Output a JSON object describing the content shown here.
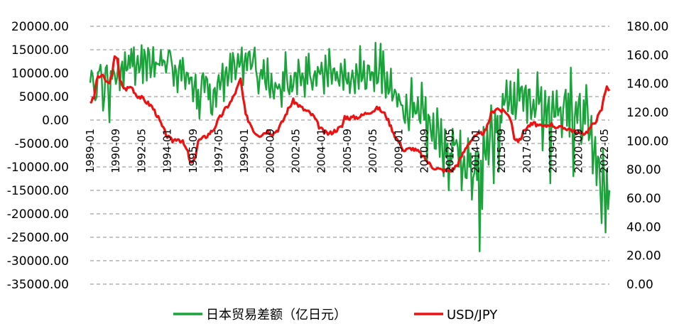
{
  "chart_data": {
    "type": "line",
    "dual_axis": true,
    "x_tick_labels": [
      "1989-01",
      "1990-09",
      "1992-05",
      "1994-01",
      "1995-09",
      "1997-05",
      "1999-01",
      "2000-09",
      "2002-05",
      "2004-01",
      "2005-09",
      "2007-05",
      "2009-01",
      "2010-09",
      "2012-05",
      "2014-01",
      "2015-09",
      "2017-05",
      "2019-01",
      "2020-09",
      "2022-05"
    ],
    "x_tick_months": [
      0,
      20,
      40,
      60,
      80,
      100,
      120,
      140,
      160,
      180,
      200,
      220,
      240,
      260,
      280,
      300,
      320,
      340,
      360,
      380,
      400
    ],
    "x_range_months": [
      0,
      404
    ],
    "y_left": {
      "ticks": [
        "20000.00",
        "15000.00",
        "10000.00",
        "5000.00",
        "0.00",
        "-5000.00",
        "-10000.00",
        "-15000.00",
        "-20000.00",
        "-25000.00",
        "-30000.00",
        "-35000.00"
      ],
      "min": -35000,
      "max": 20000
    },
    "y_right": {
      "ticks": [
        "180.00",
        "160.00",
        "140.00",
        "120.00",
        "100.00",
        "80.00",
        "60.00",
        "40.00",
        "20.00",
        "0.00"
      ],
      "min": 0,
      "max": 180
    },
    "grid": "horizontal dashed",
    "legend_position": "bottom",
    "series": [
      {
        "name": "日本贸易差额（亿日元）",
        "color": "#1aa33a",
        "axis": "left",
        "keypoints": [
          [
            0,
            8000
          ],
          [
            12,
            9000
          ],
          [
            24,
            10500
          ],
          [
            36,
            11500
          ],
          [
            48,
            12500
          ],
          [
            60,
            12000
          ],
          [
            72,
            10000
          ],
          [
            84,
            6500
          ],
          [
            96,
            6000
          ],
          [
            108,
            10500
          ],
          [
            120,
            12500
          ],
          [
            132,
            10000
          ],
          [
            144,
            7500
          ],
          [
            156,
            8000
          ],
          [
            168,
            9500
          ],
          [
            180,
            10000
          ],
          [
            192,
            8500
          ],
          [
            204,
            8000
          ],
          [
            216,
            9500
          ],
          [
            228,
            10000
          ],
          [
            238,
            4500
          ],
          [
            246,
            1000
          ],
          [
            256,
            3500
          ],
          [
            264,
            0
          ],
          [
            272,
            -3000
          ],
          [
            282,
            -6000
          ],
          [
            292,
            -8500
          ],
          [
            300,
            -9000
          ],
          [
            310,
            -5000
          ],
          [
            318,
            2500
          ],
          [
            330,
            5000
          ],
          [
            342,
            4500
          ],
          [
            354,
            3500
          ],
          [
            366,
            2500
          ],
          [
            378,
            1500
          ],
          [
            386,
            -1500
          ],
          [
            392,
            -6000
          ],
          [
            398,
            -12000
          ],
          [
            404,
            -10000
          ]
        ],
        "spikes": [
          [
            2,
            9500
          ],
          [
            4,
            4200
          ],
          [
            6,
            10200
          ],
          [
            8,
            11800
          ],
          [
            10,
            2000
          ],
          [
            15,
            -500
          ],
          [
            27,
            14500
          ],
          [
            32,
            15200
          ],
          [
            40,
            16000
          ],
          [
            45,
            15400
          ],
          [
            55,
            15000
          ],
          [
            62,
            14800
          ],
          [
            85,
            300
          ],
          [
            94,
            1500
          ],
          [
            118,
            15500
          ],
          [
            124,
            14700
          ],
          [
            128,
            15500
          ],
          [
            138,
            13200
          ],
          [
            152,
            14500
          ],
          [
            170,
            14200
          ],
          [
            186,
            15200
          ],
          [
            210,
            15800
          ],
          [
            222,
            16500
          ],
          [
            226,
            16300
          ],
          [
            234,
            11000
          ],
          [
            242,
            3200
          ],
          [
            250,
            9000
          ],
          [
            258,
            8000
          ],
          [
            262,
            -9000
          ],
          [
            275,
            -12000
          ],
          [
            279,
            -15000
          ],
          [
            287,
            -10000
          ],
          [
            289,
            -15000
          ],
          [
            297,
            -17000
          ],
          [
            303,
            -28000
          ],
          [
            305,
            -19000
          ],
          [
            314,
            -13500
          ],
          [
            318,
            -11000
          ],
          [
            324,
            8500
          ],
          [
            330,
            8000
          ],
          [
            336,
            7200
          ],
          [
            352,
            -6500
          ],
          [
            358,
            -13500
          ],
          [
            370,
            6500
          ],
          [
            374,
            11200
          ],
          [
            376,
            -12000
          ],
          [
            386,
            7500
          ],
          [
            398,
            -22000
          ],
          [
            401,
            -24000
          ],
          [
            403,
            -19000
          ],
          [
            404,
            -15000
          ]
        ]
      },
      {
        "name": "USD/JPY",
        "color": "#ee1111",
        "axis": "right",
        "keypoints": [
          [
            0,
            127
          ],
          [
            3,
            130
          ],
          [
            5,
            143
          ],
          [
            9,
            146
          ],
          [
            12,
            142
          ],
          [
            14,
            140
          ],
          [
            17,
            145
          ],
          [
            19,
            160
          ],
          [
            21,
            158
          ],
          [
            23,
            142
          ],
          [
            27,
            136
          ],
          [
            32,
            138
          ],
          [
            36,
            132
          ],
          [
            40,
            130
          ],
          [
            44,
            127
          ],
          [
            48,
            124
          ],
          [
            52,
            118
          ],
          [
            56,
            110
          ],
          [
            60,
            103
          ],
          [
            64,
            100
          ],
          [
            68,
            102
          ],
          [
            72,
            99
          ],
          [
            76,
            92
          ],
          [
            78,
            84
          ],
          [
            81,
            86
          ],
          [
            84,
            100
          ],
          [
            90,
            103
          ],
          [
            96,
            108
          ],
          [
            100,
            115
          ],
          [
            105,
            122
          ],
          [
            110,
            128
          ],
          [
            114,
            136
          ],
          [
            117,
            143
          ],
          [
            119,
            130
          ],
          [
            121,
            118
          ],
          [
            124,
            113
          ],
          [
            128,
            106
          ],
          [
            132,
            104
          ],
          [
            138,
            107
          ],
          [
            142,
            105
          ],
          [
            146,
            108
          ],
          [
            150,
            114
          ],
          [
            154,
            122
          ],
          [
            158,
            128
          ],
          [
            162,
            125
          ],
          [
            166,
            122
          ],
          [
            170,
            120
          ],
          [
            174,
            117
          ],
          [
            178,
            110
          ],
          [
            182,
            106
          ],
          [
            186,
            105
          ],
          [
            192,
            108
          ],
          [
            196,
            110
          ],
          [
            198,
            117
          ],
          [
            202,
            116
          ],
          [
            210,
            117
          ],
          [
            216,
            120
          ],
          [
            220,
            121
          ],
          [
            224,
            123
          ],
          [
            230,
            118
          ],
          [
            234,
            110
          ],
          [
            238,
            102
          ],
          [
            242,
            97
          ],
          [
            244,
            93
          ],
          [
            250,
            95
          ],
          [
            256,
            92
          ],
          [
            262,
            86
          ],
          [
            266,
            82
          ],
          [
            272,
            80
          ],
          [
            278,
            79
          ],
          [
            282,
            80
          ],
          [
            286,
            84
          ],
          [
            290,
            91
          ],
          [
            294,
            98
          ],
          [
            298,
            102
          ],
          [
            302,
            104
          ],
          [
            308,
            107
          ],
          [
            312,
            119
          ],
          [
            316,
            123
          ],
          [
            320,
            121
          ],
          [
            324,
            120
          ],
          [
            328,
            113
          ],
          [
            330,
            102
          ],
          [
            334,
            100
          ],
          [
            338,
            108
          ],
          [
            342,
            111
          ],
          [
            346,
            112
          ],
          [
            350,
            110
          ],
          [
            354,
            110
          ],
          [
            358,
            112
          ],
          [
            362,
            110
          ],
          [
            366,
            109
          ],
          [
            370,
            109
          ],
          [
            374,
            108
          ],
          [
            378,
            106
          ],
          [
            382,
            105
          ],
          [
            386,
            106
          ],
          [
            390,
            110
          ],
          [
            394,
            115
          ],
          [
            398,
            122
          ],
          [
            400,
            132
          ],
          [
            402,
            139
          ],
          [
            404,
            134
          ]
        ]
      }
    ]
  }
}
